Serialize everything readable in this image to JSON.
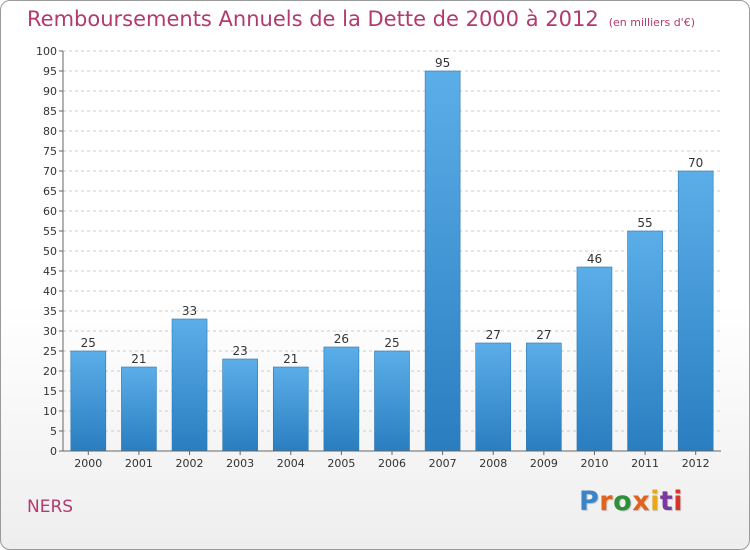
{
  "title": "Remboursements Annuels de la Dette de 2000 à 2012",
  "subtitle": "(en milliers d'€)",
  "location": "NERS",
  "logo": "Proxiti",
  "colors": {
    "bar_light": "#5baee8",
    "bar_dark": "#2a7ec0",
    "title": "#b23a6e",
    "grid": "#cccccc"
  },
  "chart_data": {
    "type": "bar",
    "title": "Remboursements Annuels de la Dette de 2000 à 2012",
    "subtitle": "(en milliers d'€)",
    "categories": [
      "2000",
      "2001",
      "2002",
      "2003",
      "2004",
      "2005",
      "2006",
      "2007",
      "2008",
      "2009",
      "2010",
      "2011",
      "2012"
    ],
    "values": [
      25,
      21,
      33,
      23,
      21,
      26,
      25,
      95,
      27,
      27,
      46,
      55,
      70
    ],
    "ylim": [
      0,
      100
    ],
    "yticks": [
      0,
      5,
      10,
      15,
      20,
      25,
      30,
      35,
      40,
      45,
      50,
      55,
      60,
      65,
      70,
      75,
      80,
      85,
      90,
      95,
      100
    ],
    "grid": true,
    "data_labels": true
  }
}
